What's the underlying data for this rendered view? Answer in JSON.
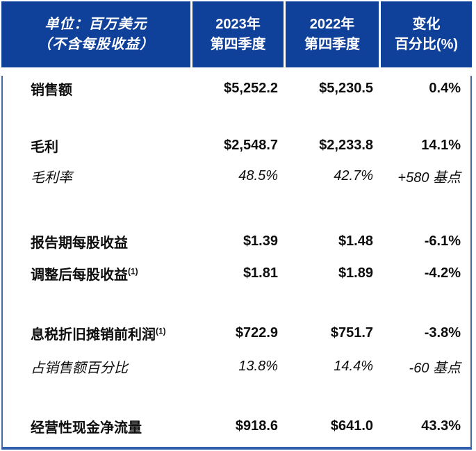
{
  "colors": {
    "header_blue": "#10419a",
    "divider_white": "#ffffff",
    "body_border_blue": "#47699f",
    "bottom_border_blue": "#2f5fae",
    "text_color": "#0d0d0d"
  },
  "table": {
    "header": {
      "unit_line1": "单位：百万美元",
      "unit_line2": "（不含每股收益）",
      "col_2023_line1": "2023年",
      "col_2023_line2": "第四季度",
      "col_2022_line1": "2022年",
      "col_2022_line2": "第四季度",
      "col_change_line1": "变化",
      "col_change_line2": "百分比(%)"
    },
    "rows": [
      {
        "label": "销售额",
        "sup": "",
        "q4_2023": "$5,252.2",
        "q4_2022": "$5,230.5",
        "change": "0.4%"
      },
      {
        "label": "毛利",
        "sup": "",
        "q4_2023": "$2,548.7",
        "q4_2022": "$2,233.8",
        "change": "14.1%"
      },
      {
        "label": "毛利率",
        "sup": "",
        "q4_2023": "48.5%",
        "q4_2022": "42.7%",
        "change": "+580 基点"
      },
      {
        "label": "报告期每股收益",
        "sup": "",
        "q4_2023": "$1.39",
        "q4_2022": "$1.48",
        "change": "-6.1%"
      },
      {
        "label": "调整后每股收益",
        "sup": "(1)",
        "q4_2023": "$1.81",
        "q4_2022": "$1.89",
        "change": "-4.2%"
      },
      {
        "label": "息税折旧摊销前利润",
        "sup": "(1)",
        "q4_2023": "$722.9",
        "q4_2022": "$751.7",
        "change": "-3.8%"
      },
      {
        "label": "占销售额百分比",
        "sup": "",
        "q4_2023": "13.8%",
        "q4_2022": "14.4%",
        "change": "-60 基点"
      },
      {
        "label": "经营性现金净流量",
        "sup": "",
        "q4_2023": "$918.6",
        "q4_2022": "$641.0",
        "change": "43.3%"
      }
    ]
  }
}
